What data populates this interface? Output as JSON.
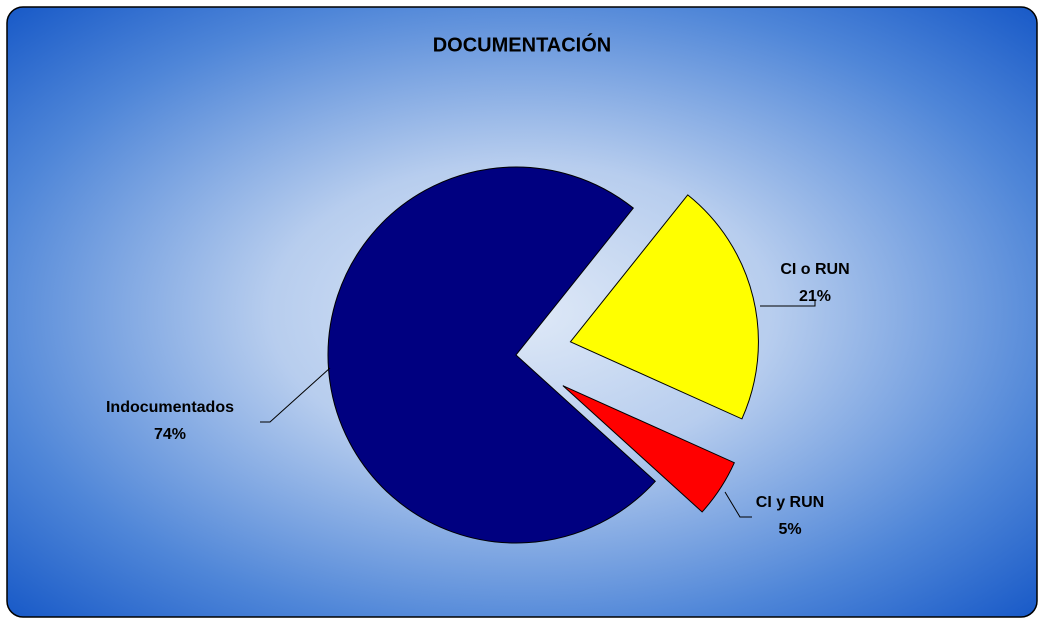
{
  "chart_data": {
    "type": "pie",
    "title": "DOCUMENTACIÓN",
    "categories": [
      "CI o RUN",
      "CI y RUN",
      "Indocumentados"
    ],
    "values": [
      21,
      5,
      74
    ],
    "value_labels": [
      "21%",
      "5%",
      "74%"
    ],
    "colors": [
      "#ffff00",
      "#ff0000",
      "#000080"
    ]
  }
}
